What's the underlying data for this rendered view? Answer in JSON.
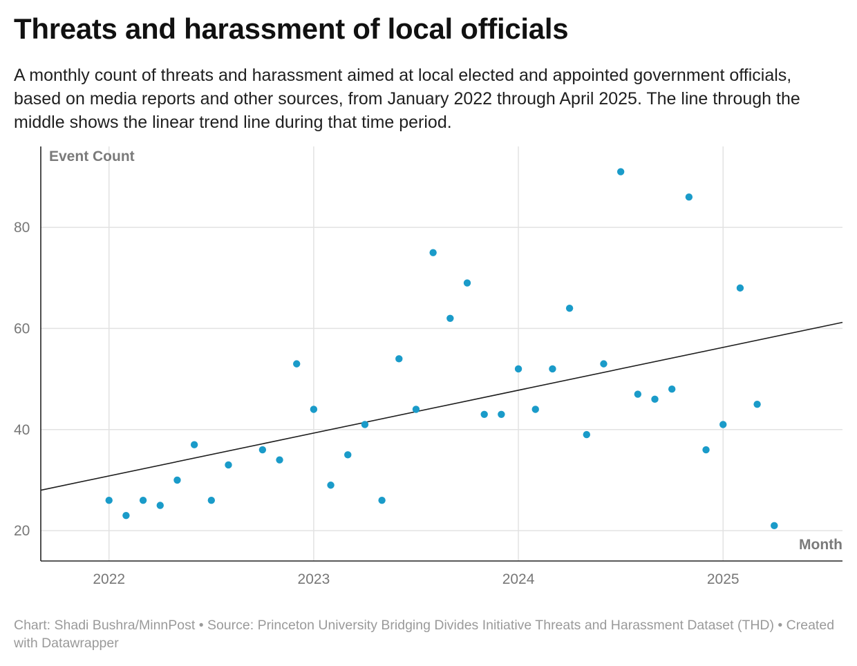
{
  "header": {
    "title": "Threats and harassment of local officials",
    "subtitle": "A monthly count of threats and harassment aimed at local elected and appointed government officials, based on media reports and other sources, from January 2022 through April 2025. The line through the middle shows the linear trend line during that time period."
  },
  "footer": {
    "text": "Chart: Shadi Bushra/MinnPost • Source: Princeton University Bridging Divides Initiative Threats and Harassment Dataset (THD) • Created with Datawrapper"
  },
  "colors": {
    "points": "#1a9bc9",
    "trend_line": "#1d1d1d",
    "grid": "#e2e2e2",
    "axis": "#222222"
  },
  "chart_data": {
    "type": "scatter",
    "ylabel": "Event Count",
    "xlabel": "Month",
    "y_ticks": [
      20,
      40,
      60,
      80
    ],
    "x_ticks": [
      "2022",
      "2023",
      "2024",
      "2025"
    ],
    "ylim": [
      14,
      96
    ],
    "xlim": [
      "2021-09",
      "2025-08"
    ],
    "grid": true,
    "series": [
      {
        "points": [
          {
            "x": "2022-01",
            "y": 26
          },
          {
            "x": "2022-02",
            "y": 23
          },
          {
            "x": "2022-03",
            "y": 26
          },
          {
            "x": "2022-04",
            "y": 25
          },
          {
            "x": "2022-05",
            "y": 30
          },
          {
            "x": "2022-06",
            "y": 37
          },
          {
            "x": "2022-07",
            "y": 26
          },
          {
            "x": "2022-08",
            "y": 33
          },
          {
            "x": "2022-10",
            "y": 36
          },
          {
            "x": "2022-11",
            "y": 34
          },
          {
            "x": "2022-12",
            "y": 53
          },
          {
            "x": "2023-01",
            "y": 44
          },
          {
            "x": "2023-02",
            "y": 29
          },
          {
            "x": "2023-03",
            "y": 35
          },
          {
            "x": "2023-04",
            "y": 41
          },
          {
            "x": "2023-05",
            "y": 26
          },
          {
            "x": "2023-06",
            "y": 54
          },
          {
            "x": "2023-07",
            "y": 44
          },
          {
            "x": "2023-08",
            "y": 75
          },
          {
            "x": "2023-09",
            "y": 62
          },
          {
            "x": "2023-10",
            "y": 69
          },
          {
            "x": "2023-11",
            "y": 43
          },
          {
            "x": "2023-12",
            "y": 43
          },
          {
            "x": "2024-01",
            "y": 52
          },
          {
            "x": "2024-02",
            "y": 44
          },
          {
            "x": "2024-03",
            "y": 52
          },
          {
            "x": "2024-04",
            "y": 64
          },
          {
            "x": "2024-05",
            "y": 39
          },
          {
            "x": "2024-06",
            "y": 53
          },
          {
            "x": "2024-07",
            "y": 91
          },
          {
            "x": "2024-08",
            "y": 47
          },
          {
            "x": "2024-09",
            "y": 46
          },
          {
            "x": "2024-10",
            "y": 48
          },
          {
            "x": "2024-11",
            "y": 86
          },
          {
            "x": "2024-12",
            "y": 36
          },
          {
            "x": "2025-01",
            "y": 41
          },
          {
            "x": "2025-02",
            "y": 68
          },
          {
            "x": "2025-03",
            "y": 45
          },
          {
            "x": "2025-04",
            "y": 21
          }
        ]
      }
    ],
    "trend_line": {
      "start": {
        "x": "2021-09",
        "y": 28.0
      },
      "end": {
        "x": "2025-08",
        "y": 61.2
      }
    }
  }
}
